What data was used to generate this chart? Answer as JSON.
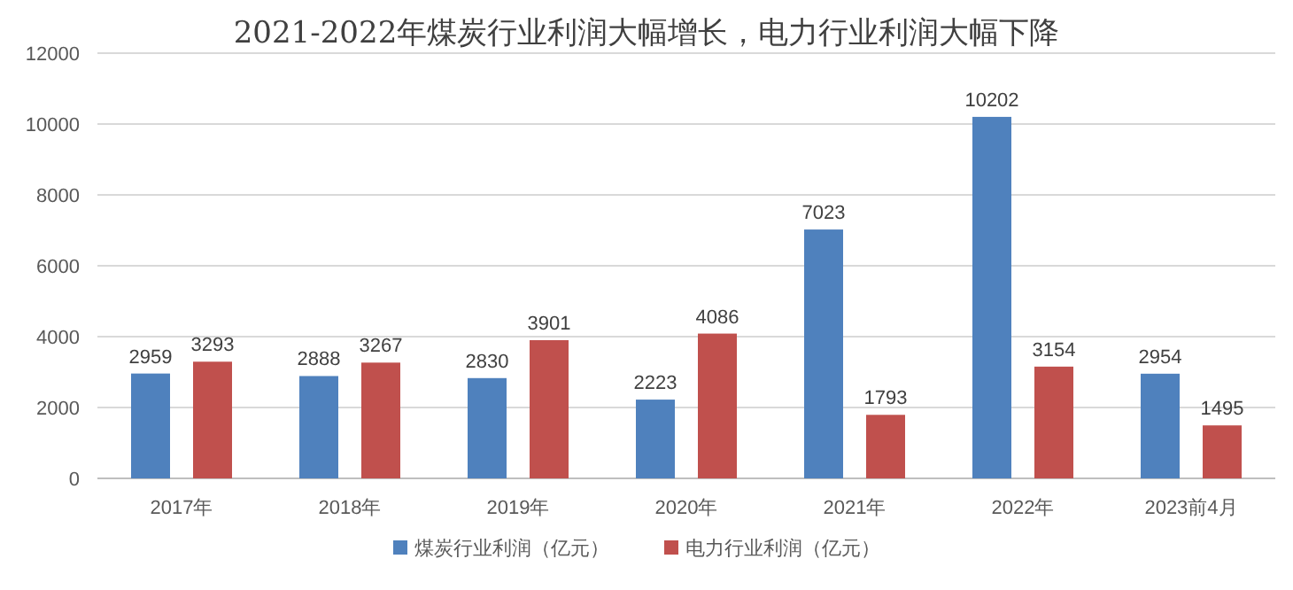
{
  "chart_data": {
    "type": "bar",
    "title": "2021-2022年煤炭行业利润大幅增长，电力行业利润大幅下降",
    "categories": [
      "2017年",
      "2018年",
      "2019年",
      "2020年",
      "2021年",
      "2022年",
      "2023前4月"
    ],
    "series": [
      {
        "name": "煤炭行业利润（亿元）",
        "color": "#4f81bd",
        "values": [
          2959,
          2888,
          2830,
          2223,
          7023,
          10202,
          2954
        ]
      },
      {
        "name": "电力行业利润（亿元）",
        "color": "#c0504d",
        "values": [
          3293,
          3267,
          3901,
          4086,
          1793,
          3154,
          1495
        ]
      }
    ],
    "ylim": [
      0,
      12000
    ],
    "yticks": [
      0,
      2000,
      4000,
      6000,
      8000,
      10000,
      12000
    ],
    "grid": "y",
    "legend": "bottom",
    "data_labels": true
  }
}
